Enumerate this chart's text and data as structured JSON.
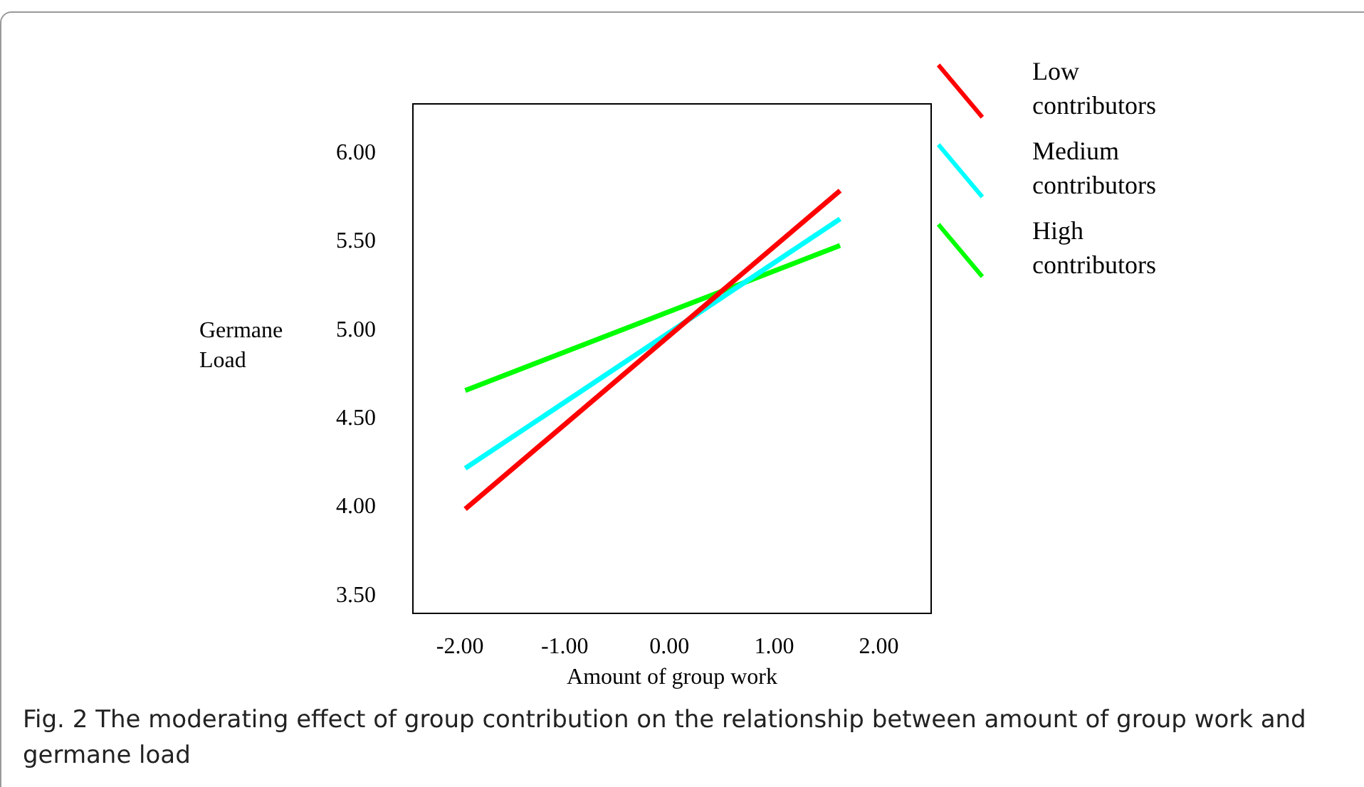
{
  "chart_data": {
    "type": "line",
    "xlabel": "Amount of group work",
    "ylabel": "Germane Load",
    "xlim": [
      -2.45,
      2.5
    ],
    "xticks": [
      {
        "value": -2,
        "label": "-2.00"
      },
      {
        "value": -1,
        "label": "-1.00"
      },
      {
        "value": 0,
        "label": "0.00"
      },
      {
        "value": 1,
        "label": "1.00"
      },
      {
        "value": 2,
        "label": "2.00"
      }
    ],
    "ylim": [
      3.4,
      6.28
    ],
    "yticks": [
      {
        "value": 3.5,
        "label": "3.50"
      },
      {
        "value": 4,
        "label": "4.00"
      },
      {
        "value": 4.5,
        "label": "4.50"
      },
      {
        "value": 5,
        "label": "5.00"
      },
      {
        "value": 5.5,
        "label": "5.50"
      },
      {
        "value": 6,
        "label": "6.00"
      }
    ],
    "x": [
      -1.95,
      1.63
    ],
    "series": [
      {
        "name": "Low contributors",
        "color": "#ff0000",
        "values": [
          3.99,
          5.79
        ]
      },
      {
        "name": "Medium contributors",
        "color": "#00ffff",
        "values": [
          4.22,
          5.63
        ]
      },
      {
        "name": "High contributors",
        "color": "#00ff00",
        "values": [
          4.66,
          5.48
        ]
      }
    ],
    "grid": false,
    "legend": "top right",
    "marker": "none",
    "line_style": "solid",
    "annotations": [
      "Fig. 2  The moderating effect of group contribution on the relationship between amount of group work and germane load"
    ]
  }
}
